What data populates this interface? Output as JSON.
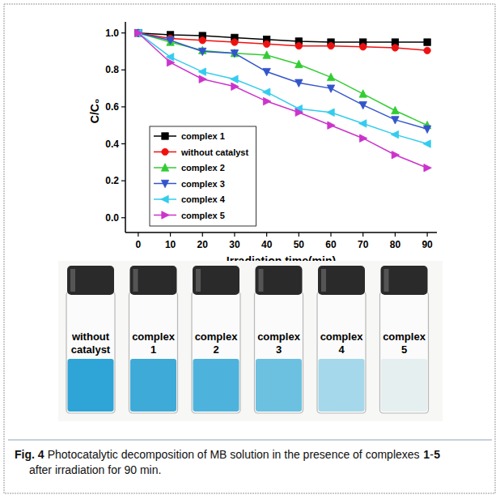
{
  "chart_data": {
    "type": "line",
    "x_label": "Irradiation time(min)",
    "y_label": "C/C₀",
    "x": [
      0,
      10,
      20,
      30,
      40,
      50,
      60,
      70,
      80,
      90
    ],
    "series": [
      {
        "name": "complex 1",
        "color": "#000000",
        "marker": "square",
        "values": [
          1.0,
          0.99,
          0.985,
          0.975,
          0.965,
          0.955,
          0.95,
          0.95,
          0.95,
          0.95
        ]
      },
      {
        "name": "without catalyst",
        "color": "#ee1111",
        "marker": "circle",
        "values": [
          1.0,
          0.97,
          0.96,
          0.95,
          0.94,
          0.93,
          0.93,
          0.925,
          0.92,
          0.905
        ]
      },
      {
        "name": "complex 2",
        "color": "#33cc33",
        "marker": "triangle-up",
        "values": [
          1.0,
          0.95,
          0.905,
          0.89,
          0.88,
          0.83,
          0.76,
          0.67,
          0.58,
          0.5
        ]
      },
      {
        "name": "complex 3",
        "color": "#3355cc",
        "marker": "triangle-down",
        "values": [
          1.0,
          0.96,
          0.9,
          0.89,
          0.79,
          0.73,
          0.7,
          0.61,
          0.53,
          0.48
        ]
      },
      {
        "name": "complex 4",
        "color": "#33ccee",
        "marker": "triangle-left",
        "values": [
          1.0,
          0.87,
          0.79,
          0.75,
          0.68,
          0.59,
          0.57,
          0.51,
          0.45,
          0.4
        ]
      },
      {
        "name": "complex 5",
        "color": "#cc33cc",
        "marker": "triangle-right",
        "values": [
          1.0,
          0.84,
          0.75,
          0.71,
          0.63,
          0.57,
          0.5,
          0.43,
          0.34,
          0.27
        ]
      }
    ],
    "xlim": [
      -4,
      93
    ],
    "ylim": [
      -0.08,
      1.06
    ],
    "xticks": [
      0,
      10,
      20,
      30,
      40,
      50,
      60,
      70,
      80,
      90
    ],
    "yticks": [
      {
        "value": 0,
        "label": "0.0"
      },
      0.2,
      0.4,
      0.6,
      0.8,
      {
        "value": 1,
        "label": "1.0"
      }
    ],
    "grid": false,
    "legend": "lower left"
  },
  "photo": {
    "labels": [
      "without catalyst",
      "complex 1",
      "complex 2",
      "complex 3",
      "complex 4",
      "complex 5"
    ]
  },
  "caption": [
    {
      "text": "Fig. 4",
      "bold": true
    },
    {
      "text": " Photocatalytic decomposition of MB solution in the presence of complexes ",
      "bold": false
    },
    {
      "text": "1",
      "bold": true
    },
    {
      "text": "-",
      "bold": false
    },
    {
      "text": "5",
      "bold": true
    },
    {
      "text": " after irradiation for 90 min.",
      "bold": false
    }
  ]
}
